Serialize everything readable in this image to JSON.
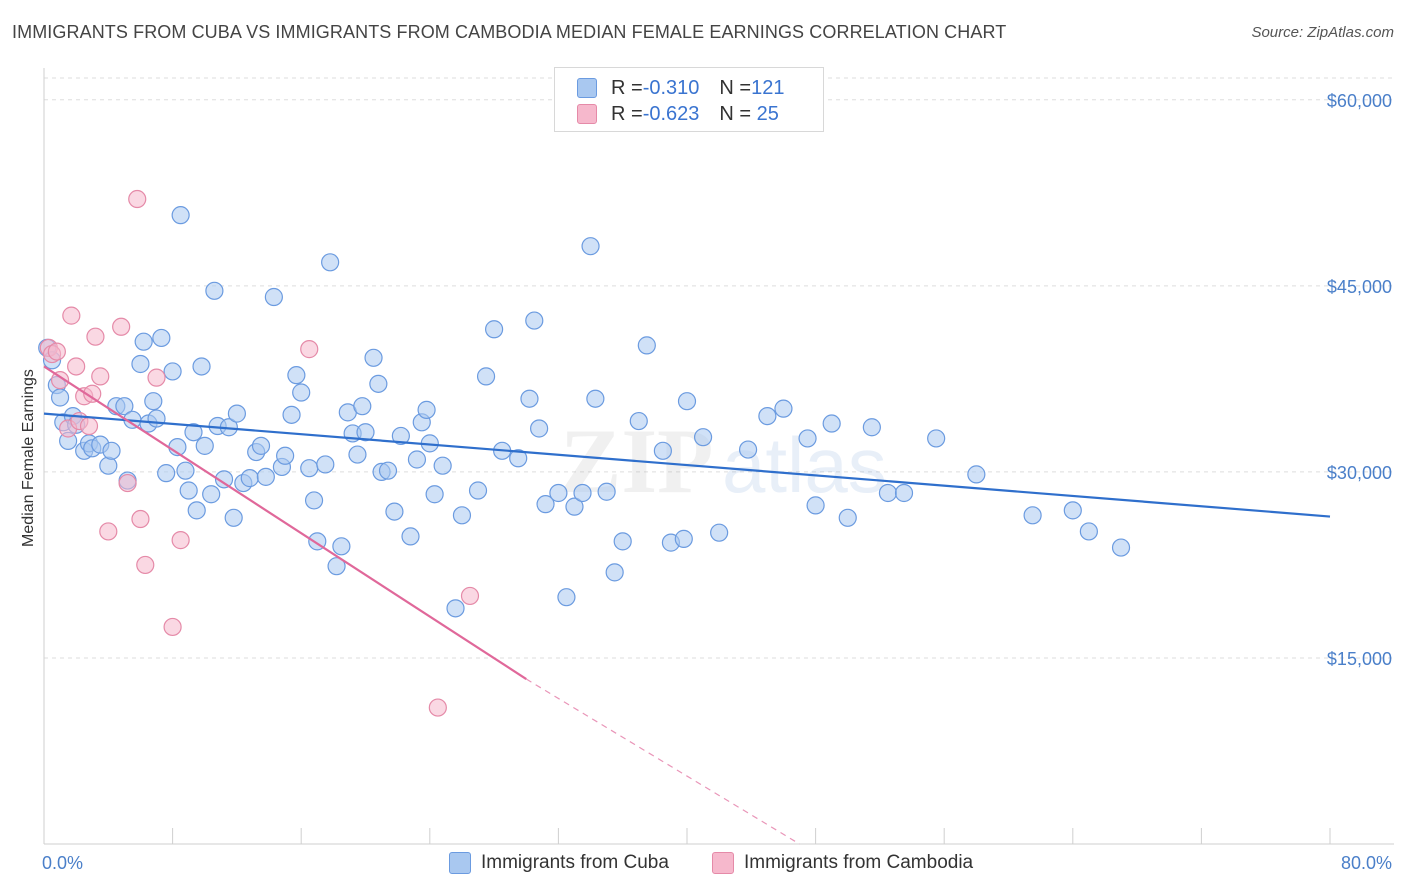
{
  "header": {
    "title": "IMMIGRANTS FROM CUBA VS IMMIGRANTS FROM CAMBODIA MEDIAN FEMALE EARNINGS CORRELATION CHART",
    "source": "Source: ZipAtlas.com"
  },
  "watermark": {
    "zip": "ZIP",
    "atlas": "atlas"
  },
  "legend": {
    "rows": [
      {
        "r_label": "R = ",
        "r_value": "-0.310",
        "n_label": "N = ",
        "n_value": "121",
        "color": "#a9c8f0"
      },
      {
        "r_label": "R = ",
        "r_value": "-0.623",
        "n_label": "N = ",
        "n_value": " 25",
        "color": "#f6b8cc"
      }
    ]
  },
  "bottom_legend": {
    "cuba": "Immigrants from Cuba",
    "cambodia": "Immigrants from Cambodia"
  },
  "chart_data": {
    "type": "scatter",
    "title": "IMMIGRANTS FROM CUBA VS IMMIGRANTS FROM CAMBODIA MEDIAN FEMALE EARNINGS CORRELATION CHART",
    "xlabel": "",
    "ylabel": "Median Female Earnings",
    "xlim": [
      0,
      80
    ],
    "ylim": [
      0,
      62000
    ],
    "x_tick_labels": [
      "0.0%",
      "80.0%"
    ],
    "y_ticks": [
      15000,
      30000,
      45000,
      60000
    ],
    "y_tick_labels": [
      "$15,000",
      "$30,000",
      "$45,000",
      "$60,000"
    ],
    "grid": true,
    "legend_position": "top-center",
    "series": [
      {
        "name": "Immigrants from Cuba",
        "color": "#a9c8f0",
        "stroke": "#6b9be0",
        "line_color": "#2f6fcc",
        "trend": {
          "x": [
            0,
            80
          ],
          "y": [
            34700,
            26400
          ]
        },
        "points": [
          [
            0.2,
            40000
          ],
          [
            0.5,
            39000
          ],
          [
            0.8,
            37000
          ],
          [
            1.0,
            36000
          ],
          [
            1.2,
            34000
          ],
          [
            1.5,
            32500
          ],
          [
            1.8,
            34500
          ],
          [
            2.0,
            33800
          ],
          [
            2.5,
            31700
          ],
          [
            2.8,
            32300
          ],
          [
            3.0,
            31900
          ],
          [
            3.5,
            32200
          ],
          [
            4.0,
            30500
          ],
          [
            4.2,
            31700
          ],
          [
            4.5,
            35300
          ],
          [
            5.0,
            35300
          ],
          [
            5.2,
            29300
          ],
          [
            5.5,
            34200
          ],
          [
            6.0,
            38700
          ],
          [
            6.2,
            40500
          ],
          [
            6.5,
            33900
          ],
          [
            6.8,
            35700
          ],
          [
            7.0,
            34300
          ],
          [
            7.3,
            40800
          ],
          [
            7.6,
            29900
          ],
          [
            8.0,
            38100
          ],
          [
            8.3,
            32000
          ],
          [
            8.5,
            50700
          ],
          [
            8.8,
            30100
          ],
          [
            9.0,
            28500
          ],
          [
            9.3,
            33200
          ],
          [
            9.5,
            26900
          ],
          [
            9.8,
            38500
          ],
          [
            10.0,
            32100
          ],
          [
            10.4,
            28200
          ],
          [
            10.6,
            44600
          ],
          [
            10.8,
            33700
          ],
          [
            11.2,
            29400
          ],
          [
            11.5,
            33600
          ],
          [
            11.8,
            26300
          ],
          [
            12.0,
            34700
          ],
          [
            12.4,
            29100
          ],
          [
            12.8,
            29500
          ],
          [
            13.2,
            31600
          ],
          [
            13.5,
            32100
          ],
          [
            13.8,
            29600
          ],
          [
            14.3,
            44100
          ],
          [
            14.8,
            30400
          ],
          [
            15.0,
            31300
          ],
          [
            15.4,
            34600
          ],
          [
            15.7,
            37800
          ],
          [
            16.0,
            36400
          ],
          [
            16.5,
            30300
          ],
          [
            16.8,
            27700
          ],
          [
            17.0,
            24400
          ],
          [
            17.5,
            30600
          ],
          [
            17.8,
            46900
          ],
          [
            18.2,
            22400
          ],
          [
            18.5,
            24000
          ],
          [
            18.9,
            34800
          ],
          [
            19.2,
            33100
          ],
          [
            19.5,
            31400
          ],
          [
            19.8,
            35300
          ],
          [
            20.0,
            33200
          ],
          [
            20.5,
            39200
          ],
          [
            20.8,
            37100
          ],
          [
            21.0,
            30000
          ],
          [
            21.4,
            30100
          ],
          [
            21.8,
            26800
          ],
          [
            22.2,
            32900
          ],
          [
            22.8,
            24800
          ],
          [
            23.2,
            31000
          ],
          [
            23.5,
            34000
          ],
          [
            23.8,
            35000
          ],
          [
            24.0,
            32300
          ],
          [
            24.3,
            28200
          ],
          [
            24.8,
            30500
          ],
          [
            25.6,
            19000
          ],
          [
            26.0,
            26500
          ],
          [
            27.0,
            28500
          ],
          [
            27.5,
            37700
          ],
          [
            28.0,
            41500
          ],
          [
            28.5,
            31700
          ],
          [
            29.5,
            31100
          ],
          [
            30.2,
            35900
          ],
          [
            30.5,
            42200
          ],
          [
            30.8,
            33500
          ],
          [
            31.2,
            27400
          ],
          [
            32.0,
            28300
          ],
          [
            32.5,
            19900
          ],
          [
            33.0,
            27200
          ],
          [
            33.5,
            28300
          ],
          [
            34.0,
            48200
          ],
          [
            34.3,
            35900
          ],
          [
            35.0,
            28400
          ],
          [
            35.5,
            21900
          ],
          [
            36.0,
            24400
          ],
          [
            37.0,
            34100
          ],
          [
            37.5,
            40200
          ],
          [
            38.5,
            31700
          ],
          [
            39.0,
            24300
          ],
          [
            39.8,
            24600
          ],
          [
            40.0,
            35700
          ],
          [
            41.0,
            32800
          ],
          [
            42.0,
            25100
          ],
          [
            43.8,
            31800
          ],
          [
            45.0,
            34500
          ],
          [
            46.0,
            35100
          ],
          [
            47.5,
            32700
          ],
          [
            48.0,
            27300
          ],
          [
            49.0,
            33900
          ],
          [
            50.0,
            26300
          ],
          [
            51.5,
            33600
          ],
          [
            52.5,
            28300
          ],
          [
            53.5,
            28300
          ],
          [
            55.5,
            32700
          ],
          [
            58.0,
            29800
          ],
          [
            61.5,
            26500
          ],
          [
            64.0,
            26900
          ],
          [
            65.0,
            25200
          ],
          [
            67.0,
            23900
          ]
        ]
      },
      {
        "name": "Immigrants from Cambodia",
        "color": "#f6b8cc",
        "stroke": "#e58aa8",
        "line_color": "#e0689a",
        "trend": {
          "x": [
            0,
            30
          ],
          "y": [
            38500,
            13300
          ]
        },
        "trend_dashed": {
          "x": [
            30,
            47
          ],
          "y": [
            13300,
            0
          ]
        },
        "points": [
          [
            0.3,
            40000
          ],
          [
            0.5,
            39500
          ],
          [
            0.8,
            39700
          ],
          [
            1.0,
            37400
          ],
          [
            1.5,
            33500
          ],
          [
            1.7,
            42600
          ],
          [
            2.0,
            38500
          ],
          [
            2.2,
            34100
          ],
          [
            2.5,
            36100
          ],
          [
            2.8,
            33700
          ],
          [
            3.0,
            36300
          ],
          [
            3.2,
            40900
          ],
          [
            3.5,
            37700
          ],
          [
            4.0,
            25200
          ],
          [
            4.8,
            41700
          ],
          [
            5.2,
            29100
          ],
          [
            5.8,
            52000
          ],
          [
            6.0,
            26200
          ],
          [
            6.3,
            22500
          ],
          [
            7.0,
            37600
          ],
          [
            8.0,
            17500
          ],
          [
            8.5,
            24500
          ],
          [
            16.5,
            39900
          ],
          [
            24.5,
            11000
          ],
          [
            26.5,
            20000
          ]
        ]
      }
    ]
  }
}
